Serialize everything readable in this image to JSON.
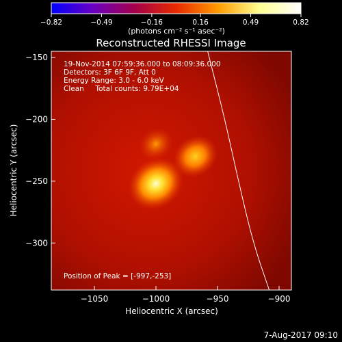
{
  "chart_data": {
    "type": "heatmap",
    "title": "Reconstructed RHESSI Image",
    "xlabel": "Heliocentric X (arcsec)",
    "ylabel": "Heliocentric Y (arcsec)",
    "xlim": [
      -1085,
      -890
    ],
    "ylim": [
      -338,
      -145
    ],
    "x_ticks": [
      {
        "value": -1050,
        "label": "−1050"
      },
      {
        "value": -1000,
        "label": "−1000"
      },
      {
        "value": -950,
        "label": "−950"
      },
      {
        "value": -900,
        "label": "−900"
      }
    ],
    "y_ticks": [
      {
        "value": -150,
        "label": "−150"
      },
      {
        "value": -200,
        "label": "−200"
      },
      {
        "value": -250,
        "label": "−250"
      },
      {
        "value": -300,
        "label": "−300"
      }
    ],
    "colorbar": {
      "range": [
        -0.82,
        0.82
      ],
      "ticks": [
        {
          "value": -0.82,
          "label": "−0.82"
        },
        {
          "value": -0.49,
          "label": "−0.49"
        },
        {
          "value": -0.16,
          "label": "−0.16"
        },
        {
          "value": 0.16,
          "label": "0.16"
        },
        {
          "value": 0.49,
          "label": "0.49"
        },
        {
          "value": 0.82,
          "label": "0.82"
        }
      ],
      "unit_label": "(photons cm⁻² s⁻¹ asec⁻²)",
      "colors": [
        "#0000ff",
        "#6a00c0",
        "#a4004c",
        "#e82a00",
        "#ff9a00",
        "#ffff90",
        "#ffffff"
      ]
    },
    "info_lines": [
      "19-Nov-2014 07:59:36.000 to 08:09:36.000",
      "Detectors: 3F 6F 9F, Att 0",
      "Energy Range: 3.0 - 6.0 keV",
      "Clean     Total counts: 9.79E+04"
    ],
    "peak_text": "Position of Peak = [-997,-253]",
    "sources": [
      {
        "name": "main",
        "x": -1000,
        "y": -252,
        "peak": 0.82
      },
      {
        "name": "secondary",
        "x": -968,
        "y": -230,
        "peak": 0.62
      },
      {
        "name": "upper-left",
        "x": -1000,
        "y": -220,
        "peak": 0.38
      }
    ],
    "limb_curve": [
      {
        "x": -958,
        "y": -145
      },
      {
        "x": -944,
        "y": -200
      },
      {
        "x": -933,
        "y": -250
      },
      {
        "x": -921,
        "y": -300
      },
      {
        "x": -908,
        "y": -338
      }
    ]
  },
  "footer": {
    "date_stamp": "7-Aug-2017 09:10"
  }
}
